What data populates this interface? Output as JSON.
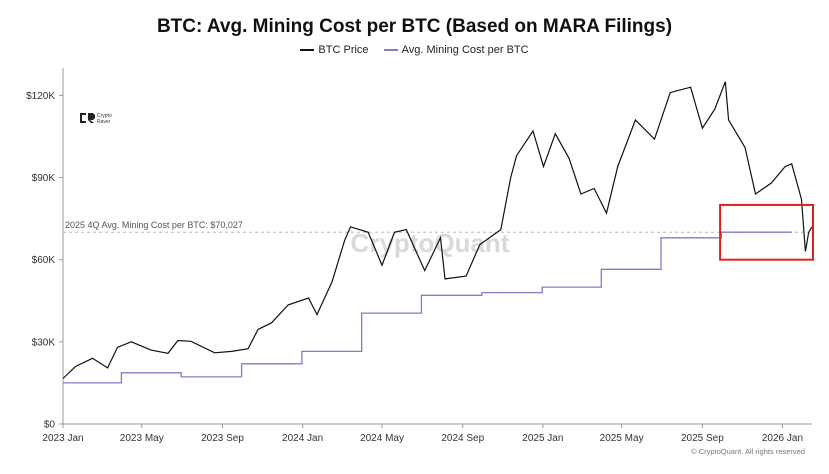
{
  "chart_data": {
    "type": "line",
    "title": "BTC: Avg. Mining Cost per BTC (Based on MARA Filings)",
    "ylim": [
      0,
      130000
    ],
    "y_ticks": [
      {
        "value": 0,
        "label": "$0"
      },
      {
        "value": 30000,
        "label": "$30K"
      },
      {
        "value": 60000,
        "label": "$60K"
      },
      {
        "value": 90000,
        "label": "$90K"
      },
      {
        "value": 120000,
        "label": "$120K"
      }
    ],
    "x_range": [
      "2023-01-01",
      "2026-02-15"
    ],
    "x_ticks": [
      {
        "date": "2023-01-01",
        "label": "2023 Jan"
      },
      {
        "date": "2023-05-01",
        "label": "2023 May"
      },
      {
        "date": "2023-09-01",
        "label": "2023 Sep"
      },
      {
        "date": "2024-01-01",
        "label": "2024 Jan"
      },
      {
        "date": "2024-05-01",
        "label": "2024 May"
      },
      {
        "date": "2024-09-01",
        "label": "2024 Sep"
      },
      {
        "date": "2025-01-01",
        "label": "2025 Jan"
      },
      {
        "date": "2025-05-01",
        "label": "2025 May"
      },
      {
        "date": "2025-09-01",
        "label": "2025 Sep"
      },
      {
        "date": "2026-01-01",
        "label": "2026 Jan"
      }
    ],
    "series": [
      {
        "name": "BTC Price",
        "color": "#111111",
        "points": [
          [
            "2023-01-01",
            16600
          ],
          [
            "2023-01-20",
            21000
          ],
          [
            "2023-02-15",
            24000
          ],
          [
            "2023-03-10",
            20500
          ],
          [
            "2023-03-25",
            28000
          ],
          [
            "2023-04-15",
            30000
          ],
          [
            "2023-05-15",
            27000
          ],
          [
            "2023-06-10",
            25800
          ],
          [
            "2023-06-25",
            30500
          ],
          [
            "2023-07-15",
            30200
          ],
          [
            "2023-08-20",
            26000
          ],
          [
            "2023-09-15",
            26500
          ],
          [
            "2023-10-10",
            27500
          ],
          [
            "2023-10-25",
            34500
          ],
          [
            "2023-11-15",
            37000
          ],
          [
            "2023-12-10",
            43500
          ],
          [
            "2024-01-10",
            46000
          ],
          [
            "2024-01-23",
            40000
          ],
          [
            "2024-02-15",
            52000
          ],
          [
            "2024-03-05",
            67000
          ],
          [
            "2024-03-14",
            72000
          ],
          [
            "2024-04-10",
            70000
          ],
          [
            "2024-05-01",
            58000
          ],
          [
            "2024-05-20",
            70000
          ],
          [
            "2024-06-07",
            71000
          ],
          [
            "2024-07-05",
            56000
          ],
          [
            "2024-07-29",
            68000
          ],
          [
            "2024-08-05",
            53000
          ],
          [
            "2024-09-06",
            54000
          ],
          [
            "2024-09-27",
            65500
          ],
          [
            "2024-10-29",
            71000
          ],
          [
            "2024-11-13",
            90000
          ],
          [
            "2024-11-22",
            98000
          ],
          [
            "2024-12-17",
            107000
          ],
          [
            "2025-01-02",
            94000
          ],
          [
            "2025-01-20",
            106000
          ],
          [
            "2025-02-10",
            97000
          ],
          [
            "2025-02-28",
            84000
          ],
          [
            "2025-03-20",
            86000
          ],
          [
            "2025-04-08",
            77000
          ],
          [
            "2025-04-25",
            94000
          ],
          [
            "2025-05-22",
            111000
          ],
          [
            "2025-06-20",
            104000
          ],
          [
            "2025-07-14",
            121000
          ],
          [
            "2025-08-14",
            123000
          ],
          [
            "2025-09-01",
            108000
          ],
          [
            "2025-09-20",
            115000
          ],
          [
            "2025-10-06",
            125000
          ],
          [
            "2025-10-11",
            111000
          ],
          [
            "2025-11-05",
            101000
          ],
          [
            "2025-11-21",
            84000
          ],
          [
            "2025-12-15",
            88000
          ],
          [
            "2026-01-05",
            94000
          ],
          [
            "2026-01-15",
            95000
          ],
          [
            "2026-01-30",
            82000
          ],
          [
            "2026-02-05",
            63000
          ],
          [
            "2026-02-10",
            70000
          ],
          [
            "2026-02-15",
            72000
          ]
        ]
      },
      {
        "name": "Avg. Mining Cost per BTC",
        "color": "#8878c8",
        "points": [
          [
            "2023-01-01",
            15000
          ],
          [
            "2023-03-31",
            15000
          ],
          [
            "2023-03-31",
            18700
          ],
          [
            "2023-06-30",
            18700
          ],
          [
            "2023-06-30",
            17200
          ],
          [
            "2023-09-30",
            17200
          ],
          [
            "2023-09-30",
            22000
          ],
          [
            "2023-12-31",
            22000
          ],
          [
            "2023-12-31",
            26500
          ],
          [
            "2024-03-31",
            26500
          ],
          [
            "2024-03-31",
            40500
          ],
          [
            "2024-06-30",
            40500
          ],
          [
            "2024-06-30",
            47000
          ],
          [
            "2024-09-30",
            47000
          ],
          [
            "2024-09-30",
            48000
          ],
          [
            "2024-12-31",
            48000
          ],
          [
            "2024-12-31",
            50000
          ],
          [
            "2025-03-31",
            50000
          ],
          [
            "2025-03-31",
            56500
          ],
          [
            "2025-06-30",
            56500
          ],
          [
            "2025-06-30",
            68000
          ],
          [
            "2025-09-30",
            68000
          ],
          [
            "2025-09-30",
            70027
          ],
          [
            "2026-01-15",
            70027
          ]
        ]
      }
    ],
    "annotations": {
      "reference_line_label": "2025 4Q Avg. Mining Cost per BTC: $70,027",
      "reference_value": 70027,
      "highlight_box_color": "#e02020"
    }
  },
  "branding": {
    "watermark": "CryptoQuant",
    "logo_text_line1": "Crypto",
    "logo_text_line2": "Raver",
    "copyright": "© CryptoQuant. All rights reserved"
  }
}
